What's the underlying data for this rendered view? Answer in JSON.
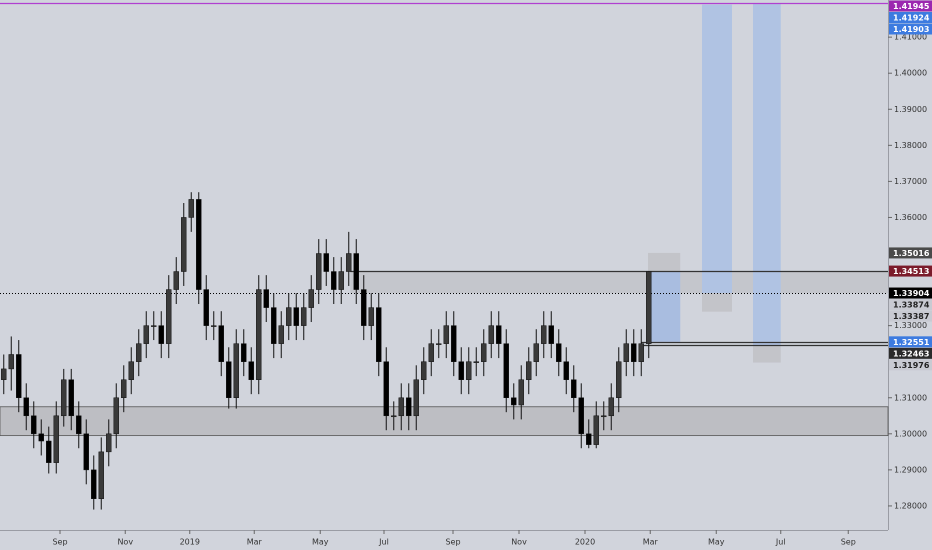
{
  "chart_data": {
    "type": "candlestick",
    "open": [
      1.315,
      1.318,
      1.322,
      1.31,
      1.305,
      1.3,
      1.298,
      1.292,
      1.305,
      1.315,
      1.305,
      1.3,
      1.29,
      1.282,
      1.295,
      1.3,
      1.31,
      1.315,
      1.32,
      1.325,
      1.33,
      1.33,
      1.325,
      1.34,
      1.345,
      1.36,
      1.365,
      1.34,
      1.33,
      1.33,
      1.32,
      1.31,
      1.325,
      1.32,
      1.315,
      1.34,
      1.335,
      1.325,
      1.33,
      1.335,
      1.33,
      1.335,
      1.34,
      1.35,
      1.345,
      1.34,
      1.345,
      1.35,
      1.34,
      1.33,
      1.335,
      1.32,
      1.305,
      1.305,
      1.31,
      1.305,
      1.315,
      1.32,
      1.325,
      1.325,
      1.33,
      1.32,
      1.315,
      1.32,
      1.32,
      1.325,
      1.33,
      1.325,
      1.31,
      1.308,
      1.315,
      1.32,
      1.325,
      1.33,
      1.325,
      1.32,
      1.315,
      1.31,
      1.3,
      1.297,
      1.305,
      1.305,
      1.31,
      1.32,
      1.325,
      1.32,
      1.325
    ],
    "high": [
      1.322,
      1.327,
      1.326,
      1.314,
      1.309,
      1.304,
      1.302,
      1.309,
      1.318,
      1.318,
      1.309,
      1.304,
      1.294,
      1.299,
      1.304,
      1.314,
      1.319,
      1.324,
      1.329,
      1.334,
      1.334,
      1.334,
      1.344,
      1.349,
      1.364,
      1.367,
      1.367,
      1.344,
      1.334,
      1.334,
      1.324,
      1.329,
      1.329,
      1.324,
      1.344,
      1.344,
      1.339,
      1.334,
      1.339,
      1.339,
      1.339,
      1.344,
      1.354,
      1.354,
      1.349,
      1.349,
      1.356,
      1.354,
      1.344,
      1.339,
      1.339,
      1.324,
      1.309,
      1.314,
      1.314,
      1.319,
      1.324,
      1.329,
      1.329,
      1.334,
      1.334,
      1.324,
      1.324,
      1.324,
      1.329,
      1.334,
      1.334,
      1.329,
      1.314,
      1.319,
      1.324,
      1.329,
      1.334,
      1.334,
      1.329,
      1.324,
      1.319,
      1.314,
      1.304,
      1.309,
      1.309,
      1.314,
      1.324,
      1.329,
      1.329,
      1.329,
      1.3451
    ],
    "low": [
      1.311,
      1.312,
      1.306,
      1.301,
      1.296,
      1.294,
      1.289,
      1.289,
      1.302,
      1.301,
      1.296,
      1.286,
      1.279,
      1.279,
      1.291,
      1.296,
      1.306,
      1.311,
      1.316,
      1.321,
      1.326,
      1.321,
      1.321,
      1.336,
      1.341,
      1.356,
      1.336,
      1.326,
      1.326,
      1.316,
      1.307,
      1.307,
      1.316,
      1.311,
      1.311,
      1.331,
      1.321,
      1.321,
      1.326,
      1.326,
      1.326,
      1.331,
      1.336,
      1.341,
      1.336,
      1.336,
      1.341,
      1.336,
      1.326,
      1.326,
      1.316,
      1.301,
      1.301,
      1.301,
      1.301,
      1.301,
      1.311,
      1.316,
      1.321,
      1.321,
      1.316,
      1.311,
      1.311,
      1.316,
      1.316,
      1.321,
      1.321,
      1.306,
      1.304,
      1.304,
      1.311,
      1.316,
      1.321,
      1.321,
      1.316,
      1.311,
      1.306,
      1.296,
      1.296,
      1.296,
      1.301,
      1.301,
      1.306,
      1.316,
      1.316,
      1.316,
      1.321
    ],
    "close": [
      1.318,
      1.322,
      1.31,
      1.305,
      1.3,
      1.298,
      1.292,
      1.305,
      1.315,
      1.305,
      1.3,
      1.29,
      1.282,
      1.295,
      1.3,
      1.31,
      1.315,
      1.32,
      1.325,
      1.33,
      1.33,
      1.325,
      1.34,
      1.345,
      1.36,
      1.365,
      1.34,
      1.33,
      1.33,
      1.32,
      1.31,
      1.325,
      1.32,
      1.315,
      1.34,
      1.335,
      1.325,
      1.33,
      1.335,
      1.33,
      1.335,
      1.34,
      1.35,
      1.345,
      1.34,
      1.345,
      1.35,
      1.34,
      1.33,
      1.335,
      1.32,
      1.305,
      1.305,
      1.31,
      1.305,
      1.315,
      1.32,
      1.325,
      1.325,
      1.33,
      1.32,
      1.315,
      1.32,
      1.32,
      1.325,
      1.33,
      1.325,
      1.31,
      1.308,
      1.315,
      1.32,
      1.325,
      1.33,
      1.325,
      1.32,
      1.315,
      1.31,
      1.3,
      1.297,
      1.305,
      1.305,
      1.31,
      1.32,
      1.325,
      1.32,
      1.325,
      1.345
    ],
    "up_color": "#3a3a3a",
    "down_color": "#000000",
    "xlim": [
      0,
      118.4
    ],
    "xticks": [
      {
        "value": 8,
        "label": "Sep"
      },
      {
        "value": 16.7,
        "label": "Nov"
      },
      {
        "value": 25.3,
        "label": "2019"
      },
      {
        "value": 33.9,
        "label": "Mar"
      },
      {
        "value": 42.7,
        "label": "May"
      },
      {
        "value": 51.2,
        "label": "Jul"
      },
      {
        "value": 60.4,
        "label": "Sep"
      },
      {
        "value": 69.2,
        "label": "Nov"
      },
      {
        "value": 78,
        "label": "2020"
      },
      {
        "value": 86.7,
        "label": "Mar"
      },
      {
        "value": 95.5,
        "label": "May"
      },
      {
        "value": 104.1,
        "label": "Jul"
      },
      {
        "value": 113.1,
        "label": "Sep"
      }
    ],
    "ylim": [
      1.2761,
      1.4203
    ],
    "yticks": [
      {
        "value": 1.28,
        "label": "1.28000"
      },
      {
        "value": 1.29,
        "label": "1.29000"
      },
      {
        "value": 1.3,
        "label": "1.30000"
      },
      {
        "value": 1.31,
        "label": "1.31000"
      },
      {
        "value": 1.33,
        "label": "1.33000"
      },
      {
        "value": 1.36,
        "label": "1.36000"
      },
      {
        "value": 1.37,
        "label": "1.37000"
      },
      {
        "value": 1.38,
        "label": "1.38000"
      },
      {
        "value": 1.39,
        "label": "1.39000"
      },
      {
        "value": 1.4,
        "label": "1.40000"
      },
      {
        "value": 1.41,
        "label": "1.41000"
      }
    ],
    "zones": [
      {
        "from": 0,
        "to": 118.4,
        "top": 1.3075,
        "bottom": 1.2995,
        "color": "#bdbec3"
      },
      {
        "from": 46.7,
        "to": 118.4,
        "top": 1.34513,
        "bottom": 1.33904,
        "color": "#c4c6cc"
      },
      {
        "from": 86.4,
        "to": 90.7,
        "top": 1.35016,
        "bottom": 1.34513,
        "color": "#c3c4c9"
      },
      {
        "from": 86.4,
        "to": 90.7,
        "top": 1.34513,
        "bottom": 1.32551,
        "color": "#a9bde0"
      },
      {
        "from": 93.6,
        "to": 97.6,
        "top": 1.41903,
        "bottom": 1.33904,
        "color": "#b0c3e3"
      },
      {
        "from": 93.6,
        "to": 97.6,
        "top": 1.33904,
        "bottom": 1.33387,
        "color": "#c3c4c9"
      },
      {
        "from": 100.4,
        "to": 104.1,
        "top": 1.41924,
        "bottom": 1.32463,
        "color": "#b0c3e3"
      },
      {
        "from": 100.4,
        "to": 104.1,
        "top": 1.32463,
        "bottom": 1.31976,
        "color": "#c3c4c9"
      }
    ],
    "hlines": [
      {
        "value": 1.41945,
        "from": 0,
        "color": "#b040d0",
        "style": "solid"
      },
      {
        "value": 1.33904,
        "from": 0,
        "color": "#000000",
        "style": "dotted"
      },
      {
        "value": 1.34513,
        "from": 46.7,
        "color": "#333333",
        "style": "solid"
      },
      {
        "value": 1.32551,
        "from": 85.5,
        "color": "#333333",
        "style": "solid"
      },
      {
        "value": 1.32463,
        "from": 85.5,
        "color": "#333333",
        "style": "solid"
      }
    ],
    "price_labels": [
      {
        "value": 1.41945,
        "color": "#9c27b0",
        "text_color": "#ffffff"
      },
      {
        "value": 1.41924,
        "color": "#3d7be0",
        "text_color": "#ffffff"
      },
      {
        "value": 1.41903,
        "color": "#3d7be0",
        "text_color": "#ffffff"
      },
      {
        "value": 1.35016,
        "color": "#4a4a4a",
        "text_color": "#ffffff"
      },
      {
        "value": 1.34513,
        "color": "#7b1b2b",
        "text_color": "#ffffff"
      },
      {
        "value": 1.33904,
        "color": "#000000",
        "text_color": "#ffffff"
      },
      {
        "value": 1.33874,
        "color": "#c8cad2",
        "text_color": "#222222"
      },
      {
        "value": 1.33387,
        "color": "#c8cad2",
        "text_color": "#222222"
      },
      {
        "value": 1.32551,
        "color": "#3d7be0",
        "text_color": "#ffffff"
      },
      {
        "value": 1.32463,
        "color": "#2b2b2b",
        "text_color": "#ffffff"
      },
      {
        "value": 1.31976,
        "color": "#c8cad2",
        "text_color": "#222222"
      }
    ]
  }
}
